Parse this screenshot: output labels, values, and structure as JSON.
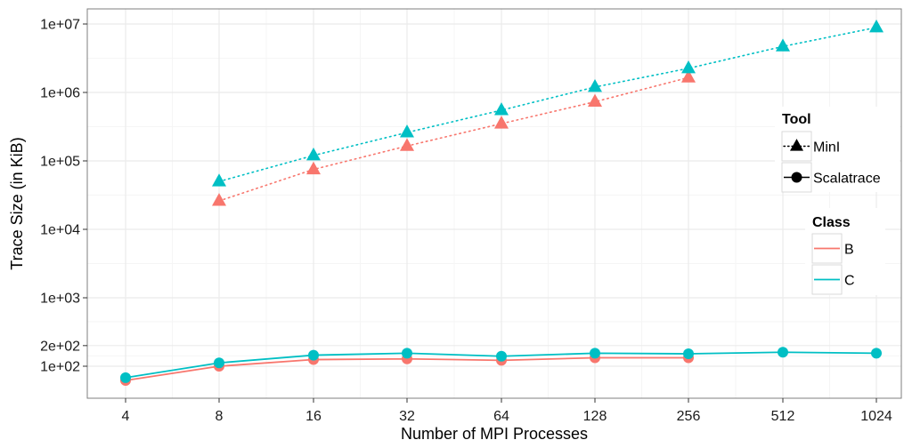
{
  "chart_data": {
    "type": "line",
    "xlabel": "Number of MPI Processes",
    "ylabel": "Trace Size (in KiB)",
    "x_scale": "log2",
    "y_scale": "log10",
    "categories": [
      "4",
      "8",
      "16",
      "32",
      "64",
      "128",
      "256",
      "512",
      "1024"
    ],
    "y_ticks": [
      {
        "label": "1e+02",
        "value": 100
      },
      {
        "label": "2e+02",
        "value": 200
      },
      {
        "label": "1e+03",
        "value": 1000
      },
      {
        "label": "1e+04",
        "value": 10000
      },
      {
        "label": "1e+05",
        "value": 100000
      },
      {
        "label": "1e+06",
        "value": 1000000
      },
      {
        "label": "1e+07",
        "value": 10000000
      }
    ],
    "ylim": [
      38,
      13000000
    ],
    "grid": true,
    "series": [
      {
        "tool": "MinI",
        "class": "B",
        "marker": "triangle",
        "line": "dotted",
        "x": [
          8,
          16,
          32,
          64,
          128,
          256
        ],
        "y": [
          26000,
          75000,
          165000,
          350000,
          730000,
          1650000
        ]
      },
      {
        "tool": "MinI",
        "class": "C",
        "marker": "triangle",
        "line": "dotted",
        "x": [
          8,
          16,
          32,
          64,
          128,
          256,
          512,
          1024
        ],
        "y": [
          50000,
          120000,
          260000,
          550000,
          1200000,
          2250000,
          4700000,
          8900000
        ]
      },
      {
        "tool": "Scalatrace",
        "class": "B",
        "marker": "circle",
        "line": "solid",
        "x": [
          4,
          8,
          16,
          32,
          64,
          128,
          256
        ],
        "y": [
          62,
          100,
          125,
          128,
          122,
          133,
          133
        ]
      },
      {
        "tool": "Scalatrace",
        "class": "C",
        "marker": "circle",
        "line": "solid",
        "x": [
          4,
          8,
          16,
          32,
          64,
          128,
          256,
          512,
          1024
        ],
        "y": [
          68,
          112,
          145,
          155,
          140,
          155,
          152,
          160,
          155
        ]
      }
    ],
    "legends": [
      {
        "title": "Tool",
        "position": "right",
        "items": [
          {
            "label": "MinI",
            "marker": "triangle",
            "line": "dotted"
          },
          {
            "label": "Scalatrace",
            "marker": "circle",
            "line": "solid"
          }
        ]
      },
      {
        "title": "Class",
        "position": "right",
        "items": [
          {
            "label": "B",
            "color": "#F8766D"
          },
          {
            "label": "C",
            "color": "#00BFC4"
          }
        ]
      }
    ]
  },
  "colors": {
    "B": "#F8766D",
    "C": "#00BFC4",
    "panel_border": "#7f7f7f",
    "grid_major": "#ebebeb",
    "grid_minor": "#f5f5f5"
  }
}
